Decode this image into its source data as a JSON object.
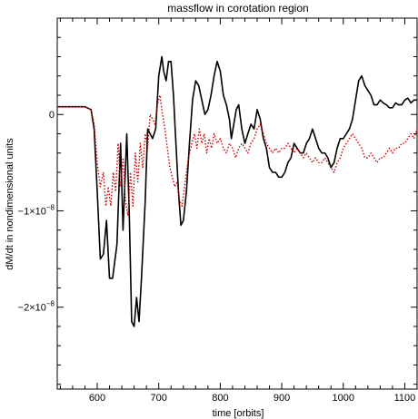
{
  "chart_data": {
    "type": "line",
    "title": "massflow in corotation region",
    "xlabel": "time [orbits]",
    "ylabel": "dM/dt in nondimensional units",
    "xlim": [
      535,
      1120
    ],
    "ylim": [
      -2.85e-08,
      1e-08
    ],
    "grid": false,
    "legend": "none",
    "x_ticks": [
      {
        "value": 600,
        "label": "600"
      },
      {
        "value": 700,
        "label": "700"
      },
      {
        "value": 800,
        "label": "800"
      },
      {
        "value": 900,
        "label": "900"
      },
      {
        "value": 1000,
        "label": "1000"
      },
      {
        "value": 1100,
        "label": "1100"
      }
    ],
    "y_ticks": [
      {
        "value": 0,
        "label": "0",
        "sup": ""
      },
      {
        "value": -1e-08,
        "label": "−1×10",
        "sup": "−8"
      },
      {
        "value": -2e-08,
        "label": "−2×10",
        "sup": "−8"
      }
    ],
    "series": [
      {
        "color": "#000000",
        "style": "solid",
        "points": [
          [
            535,
            8e-10
          ],
          [
            580,
            8e-10
          ],
          [
            590,
            5e-10
          ],
          [
            595,
            -1.5e-09
          ],
          [
            600,
            -8e-09
          ],
          [
            605,
            -1.5e-08
          ],
          [
            610,
            -1.45e-08
          ],
          [
            615,
            -1.1e-08
          ],
          [
            620,
            -1.7e-08
          ],
          [
            625,
            -1.7e-08
          ],
          [
            632,
            -1.35e-08
          ],
          [
            638,
            -3e-09
          ],
          [
            642,
            -1.2e-08
          ],
          [
            648,
            -2e-09
          ],
          [
            652,
            -1e-08
          ],
          [
            656,
            -2.15e-08
          ],
          [
            660,
            -2.2e-08
          ],
          [
            664,
            -1.9e-08
          ],
          [
            668,
            -2.15e-08
          ],
          [
            672,
            -1.7e-08
          ],
          [
            678,
            -9e-09
          ],
          [
            682,
            -1.5e-09
          ],
          [
            686,
            -2e-09
          ],
          [
            690,
            -2.5e-09
          ],
          [
            695,
            -1.5e-09
          ],
          [
            700,
            4e-09
          ],
          [
            705,
            6e-09
          ],
          [
            708,
            4.5e-09
          ],
          [
            712,
            3.5e-09
          ],
          [
            716,
            5.5e-09
          ],
          [
            720,
            5.5e-09
          ],
          [
            724,
            2e-09
          ],
          [
            728,
            -3e-09
          ],
          [
            732,
            -8e-09
          ],
          [
            736,
            -1.15e-08
          ],
          [
            740,
            -1.1e-08
          ],
          [
            745,
            -8e-09
          ],
          [
            750,
            -3e-09
          ],
          [
            755,
            1.5e-09
          ],
          [
            760,
            3.5e-09
          ],
          [
            765,
            3e-09
          ],
          [
            770,
            1.5e-09
          ],
          [
            775,
            0.0
          ],
          [
            780,
            5e-10
          ],
          [
            785,
            2e-09
          ],
          [
            790,
            4e-09
          ],
          [
            795,
            5.5e-09
          ],
          [
            800,
            4.5e-09
          ],
          [
            805,
            2e-09
          ],
          [
            810,
            1e-09
          ],
          [
            815,
            -5e-10
          ],
          [
            818,
            -2.5e-09
          ],
          [
            822,
            -1e-09
          ],
          [
            826,
            5e-10
          ],
          [
            830,
            1e-09
          ],
          [
            835,
            -1.5e-09
          ],
          [
            840,
            -3e-09
          ],
          [
            845,
            -2e-09
          ],
          [
            850,
            -1e-09
          ],
          [
            855,
            -1.5e-09
          ],
          [
            860,
            5e-10
          ],
          [
            865,
            -5e-10
          ],
          [
            870,
            -2.5e-09
          ],
          [
            875,
            -3.5e-09
          ],
          [
            880,
            -5.5e-09
          ],
          [
            885,
            -6e-09
          ],
          [
            890,
            -6e-09
          ],
          [
            895,
            -6.5e-09
          ],
          [
            900,
            -6.5e-09
          ],
          [
            905,
            -6e-09
          ],
          [
            910,
            -5e-09
          ],
          [
            915,
            -4.5e-09
          ],
          [
            920,
            -3e-09
          ],
          [
            925,
            -3.5e-09
          ],
          [
            930,
            -4e-09
          ],
          [
            935,
            -4e-09
          ],
          [
            940,
            -3e-09
          ],
          [
            945,
            -2.5e-09
          ],
          [
            950,
            -1.5e-09
          ],
          [
            955,
            -2.5e-09
          ],
          [
            960,
            -3.5e-09
          ],
          [
            965,
            -4e-09
          ],
          [
            970,
            -4e-09
          ],
          [
            975,
            -4.5e-09
          ],
          [
            980,
            -5.5e-09
          ],
          [
            985,
            -5e-09
          ],
          [
            990,
            -3.5e-09
          ],
          [
            995,
            -2.5e-09
          ],
          [
            1000,
            -2.5e-09
          ],
          [
            1005,
            -2e-09
          ],
          [
            1010,
            -1.5e-09
          ],
          [
            1015,
            -5e-10
          ],
          [
            1020,
            1.5e-09
          ],
          [
            1025,
            3.5e-09
          ],
          [
            1030,
            4e-09
          ],
          [
            1035,
            3e-09
          ],
          [
            1040,
            2.5e-09
          ],
          [
            1045,
            2e-09
          ],
          [
            1050,
            1e-09
          ],
          [
            1055,
            1e-09
          ],
          [
            1060,
            1.5e-09
          ],
          [
            1065,
            1.2e-09
          ],
          [
            1070,
            1e-09
          ],
          [
            1075,
            7e-10
          ],
          [
            1080,
            7e-10
          ],
          [
            1085,
            1.2e-09
          ],
          [
            1090,
            1e-09
          ],
          [
            1095,
            1e-09
          ],
          [
            1100,
            1.5e-09
          ],
          [
            1105,
            1.7e-09
          ],
          [
            1110,
            1.2e-09
          ],
          [
            1115,
            1.5e-09
          ],
          [
            1120,
            1.5e-09
          ]
        ]
      },
      {
        "color": "#cc0000",
        "style": "dotted",
        "points": [
          [
            535,
            8e-10
          ],
          [
            580,
            8e-10
          ],
          [
            590,
            5e-10
          ],
          [
            595,
            -1e-09
          ],
          [
            600,
            -5e-09
          ],
          [
            605,
            -7.5e-09
          ],
          [
            610,
            -6e-09
          ],
          [
            614,
            -9.5e-09
          ],
          [
            618,
            -7.5e-09
          ],
          [
            622,
            -9.5e-09
          ],
          [
            626,
            -6e-09
          ],
          [
            630,
            -8e-09
          ],
          [
            634,
            -3e-09
          ],
          [
            638,
            -7.5e-09
          ],
          [
            642,
            -4.5e-09
          ],
          [
            646,
            -9e-09
          ],
          [
            650,
            -1.05e-08
          ],
          [
            654,
            -6e-09
          ],
          [
            658,
            -9.5e-09
          ],
          [
            662,
            -4e-09
          ],
          [
            666,
            -7e-09
          ],
          [
            670,
            -3e-09
          ],
          [
            674,
            -5.5e-09
          ],
          [
            678,
            -2e-09
          ],
          [
            682,
            -3.5e-09
          ],
          [
            686,
            0.0
          ],
          [
            690,
            -5e-10
          ],
          [
            694,
            -1e-09
          ],
          [
            698,
            1e-09
          ],
          [
            702,
            2e-09
          ],
          [
            706,
            0.0
          ],
          [
            710,
            -1.5e-09
          ],
          [
            714,
            -3.5e-09
          ],
          [
            718,
            -5.5e-09
          ],
          [
            722,
            -6.5e-09
          ],
          [
            726,
            -7.5e-09
          ],
          [
            730,
            -7e-09
          ],
          [
            734,
            -9e-09
          ],
          [
            738,
            -9.5e-09
          ],
          [
            742,
            -7.5e-09
          ],
          [
            746,
            -5.5e-09
          ],
          [
            750,
            -4e-09
          ],
          [
            754,
            -3e-09
          ],
          [
            758,
            -2e-09
          ],
          [
            762,
            -3.5e-09
          ],
          [
            766,
            -1.5e-09
          ],
          [
            770,
            -3e-09
          ],
          [
            774,
            -2e-09
          ],
          [
            778,
            -4e-09
          ],
          [
            782,
            -2.5e-09
          ],
          [
            786,
            -3.5e-09
          ],
          [
            790,
            -2e-09
          ],
          [
            795,
            -3e-09
          ],
          [
            800,
            -2.5e-09
          ],
          [
            805,
            -3.5e-09
          ],
          [
            810,
            -4e-09
          ],
          [
            815,
            -3e-09
          ],
          [
            820,
            -3.5e-09
          ],
          [
            825,
            -4.5e-09
          ],
          [
            830,
            -3.5e-09
          ],
          [
            835,
            -3e-09
          ],
          [
            840,
            -3.5e-09
          ],
          [
            845,
            -4e-09
          ],
          [
            850,
            -3e-09
          ],
          [
            855,
            -2.5e-09
          ],
          [
            860,
            -1.5e-09
          ],
          [
            865,
            -1e-09
          ],
          [
            870,
            -2e-09
          ],
          [
            875,
            -3e-09
          ],
          [
            880,
            -3.5e-09
          ],
          [
            885,
            -4e-09
          ],
          [
            890,
            -3.5e-09
          ],
          [
            895,
            -4e-09
          ],
          [
            900,
            -3.5e-09
          ],
          [
            905,
            -3.5e-09
          ],
          [
            910,
            -3e-09
          ],
          [
            915,
            -3.5e-09
          ],
          [
            920,
            -4e-09
          ],
          [
            925,
            -3.5e-09
          ],
          [
            930,
            -4e-09
          ],
          [
            935,
            -4.5e-09
          ],
          [
            940,
            -4e-09
          ],
          [
            945,
            -4.5e-09
          ],
          [
            950,
            -5e-09
          ],
          [
            955,
            -4.5e-09
          ],
          [
            960,
            -5e-09
          ],
          [
            965,
            -5e-09
          ],
          [
            970,
            -4.5e-09
          ],
          [
            975,
            -5e-09
          ],
          [
            980,
            -5.5e-09
          ],
          [
            985,
            -6e-09
          ],
          [
            990,
            -5e-09
          ],
          [
            995,
            -4.5e-09
          ],
          [
            1000,
            -3.5e-09
          ],
          [
            1005,
            -3e-09
          ],
          [
            1010,
            -2.5e-09
          ],
          [
            1015,
            -2e-09
          ],
          [
            1020,
            -2.5e-09
          ],
          [
            1025,
            -3e-09
          ],
          [
            1030,
            -3.5e-09
          ],
          [
            1035,
            -4.5e-09
          ],
          [
            1040,
            -4.5e-09
          ],
          [
            1045,
            -4e-09
          ],
          [
            1050,
            -4.5e-09
          ],
          [
            1055,
            -5e-09
          ],
          [
            1060,
            -4.5e-09
          ],
          [
            1065,
            -4.5e-09
          ],
          [
            1070,
            -4e-09
          ],
          [
            1075,
            -3.5e-09
          ],
          [
            1080,
            -4e-09
          ],
          [
            1085,
            -3.5e-09
          ],
          [
            1090,
            -3.5e-09
          ],
          [
            1095,
            -3e-09
          ],
          [
            1100,
            -3e-09
          ],
          [
            1105,
            -2.5e-09
          ],
          [
            1110,
            -2e-09
          ],
          [
            1115,
            -2.5e-09
          ],
          [
            1120,
            -1.5e-09
          ]
        ]
      }
    ]
  }
}
